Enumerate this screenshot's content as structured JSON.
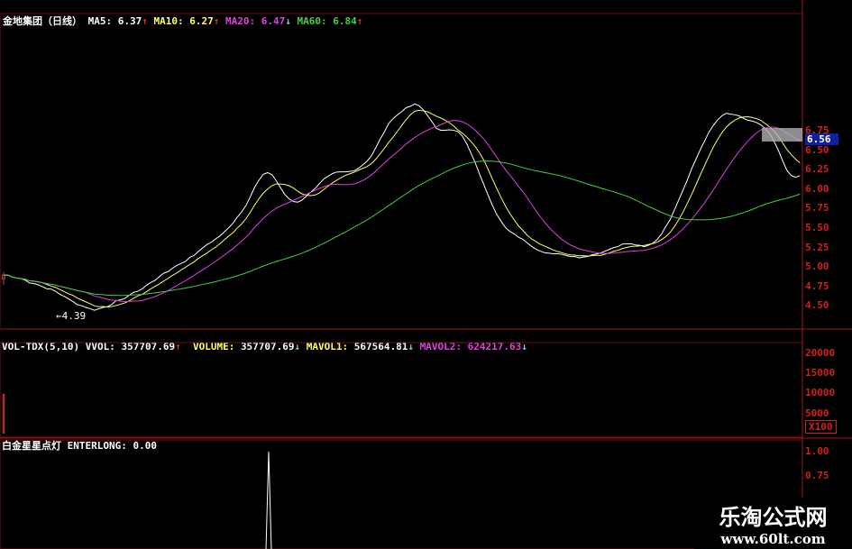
{
  "header": {
    "name": "金地集团（日线）",
    "ma5_label": "MA5:",
    "ma5": "6.37",
    "ma10_label": "MA10:",
    "ma10": "6.27",
    "ma20_label": "MA20:",
    "ma20": "6.47",
    "ma60_label": "MA60:",
    "ma60": "6.84",
    "up": "↑",
    "down": "↓"
  },
  "volume_header": {
    "name": "VOL-TDX(5,10)",
    "vvol_label": "VVOL:",
    "vvol": "357707.69",
    "volume_label": "VOLUME:",
    "volume": "357707.69",
    "mavol1_label": "MAVOL1:",
    "mavol1": "567564.81",
    "mavol2_label": "MAVOL2:",
    "mavol2": "624217.63"
  },
  "indicator_header": {
    "name": "白金星星点灯",
    "label": "ENTERLONG:",
    "value": "0.00"
  },
  "low_marker": "←4.39",
  "current_price": "6.56",
  "watermark": {
    "title": "乐淘公式网",
    "url": "www.60lt.com"
  },
  "colors": {
    "up": "#d04040",
    "down": "#80d0d0",
    "ma5": "#ffffff",
    "ma10": "#ffff60",
    "ma20": "#e040e0",
    "ma60": "#40d040",
    "axis": "#d02020"
  },
  "chart_data": [
    {
      "type": "candlestick",
      "ylim": [
        4.39,
        7.2
      ],
      "yticks": [
        "6.75",
        "6.50",
        "6.25",
        "6.00",
        "5.75",
        "5.50",
        "5.25",
        "5.00",
        "4.75",
        "4.50"
      ],
      "closes": [
        4.9,
        4.85,
        4.75,
        4.7,
        4.6,
        4.5,
        4.45,
        4.5,
        4.6,
        4.7,
        4.8,
        4.95,
        5.05,
        5.15,
        5.3,
        5.4,
        5.6,
        5.9,
        6.3,
        6.1,
        5.75,
        5.9,
        6.1,
        6.2,
        6.15,
        6.3,
        6.5,
        6.9,
        7.0,
        7.2,
        6.8,
        6.7,
        6.85,
        6.4,
        5.9,
        5.6,
        5.4,
        5.3,
        5.2,
        5.2,
        5.15,
        5.15,
        5.2,
        5.25,
        5.3,
        5.25,
        5.3,
        5.6,
        6.0,
        6.4,
        6.8,
        7.0,
        6.9,
        6.85,
        6.8,
        6.4,
        6.0,
        6.35
      ]
    },
    {
      "type": "bar",
      "name": "VOL-TDX",
      "unit": "X100",
      "yticks": [
        "20000",
        "15000",
        "10000",
        "5000"
      ],
      "ylim": [
        0,
        22000
      ]
    },
    {
      "type": "line",
      "name": "ENTERLONG",
      "yticks": [
        "1.00",
        "0.75"
      ],
      "ylim": [
        0,
        1.05
      ],
      "spike_value": 1.0
    }
  ]
}
